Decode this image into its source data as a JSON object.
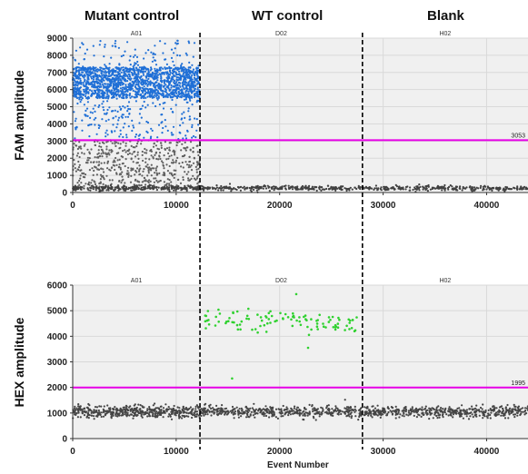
{
  "header": {
    "labels": [
      "Mutant control",
      "WT control",
      "Blank"
    ]
  },
  "chart_data": [
    {
      "type": "scatter",
      "ylabel": "FAM amplitude",
      "xlabel": "",
      "xlim": [
        0,
        44000
      ],
      "ylim": [
        0,
        9000
      ],
      "xticks": [
        0,
        10000,
        20000,
        30000,
        40000
      ],
      "yticks": [
        0,
        1000,
        2000,
        3000,
        4000,
        5000,
        6000,
        7000,
        8000,
        9000
      ],
      "grid": true,
      "wells": [
        {
          "name": "A01",
          "x_range": [
            0,
            12300
          ]
        },
        {
          "name": "D02",
          "x_range": [
            12300,
            28000
          ]
        },
        {
          "name": "H02",
          "x_range": [
            28000,
            44000
          ]
        }
      ],
      "threshold": {
        "value": 3053,
        "label": "3053",
        "color": "#e600e6"
      },
      "series": [
        {
          "color": "#1f6fd6",
          "points_summary": {
            "well": "A01",
            "y_range": [
              3053,
              8900
            ],
            "dense_range": [
              5500,
              7300
            ]
          }
        },
        {
          "color": "#606060",
          "points_summary": {
            "well": "A01",
            "y_range": [
              300,
              3053
            ]
          }
        },
        {
          "color": "#404040",
          "points_summary": {
            "wells": [
              "A01",
              "D02",
              "H02"
            ],
            "baseline": 250
          }
        }
      ]
    },
    {
      "type": "scatter",
      "ylabel": "HEX amplitude",
      "xlabel": "Event Number",
      "xlim": [
        0,
        44000
      ],
      "ylim": [
        0,
        6000
      ],
      "xticks": [
        0,
        10000,
        20000,
        30000,
        40000
      ],
      "yticks": [
        0,
        1000,
        2000,
        3000,
        4000,
        5000,
        6000
      ],
      "grid": true,
      "wells": [
        {
          "name": "A01",
          "x_range": [
            0,
            12300
          ]
        },
        {
          "name": "D02",
          "x_range": [
            12300,
            28000
          ]
        },
        {
          "name": "H02",
          "x_range": [
            28000,
            44000
          ]
        }
      ],
      "threshold": {
        "value": 1995,
        "label": "1995",
        "color": "#e600e6"
      },
      "series": [
        {
          "color": "#2fd12f",
          "points_summary": {
            "well": "D02",
            "y_range": [
              3500,
              5700
            ],
            "center": 4600,
            "count": 110
          }
        },
        {
          "color": "#454545",
          "points_summary": {
            "wells": [
              "A01",
              "D02",
              "H02"
            ],
            "baseline": 1050
          }
        }
      ]
    }
  ],
  "colors": {
    "plot_background": "#f0f0f0",
    "grid": "#d9d9d9",
    "divider": "#000000",
    "well_label": "#333333"
  }
}
